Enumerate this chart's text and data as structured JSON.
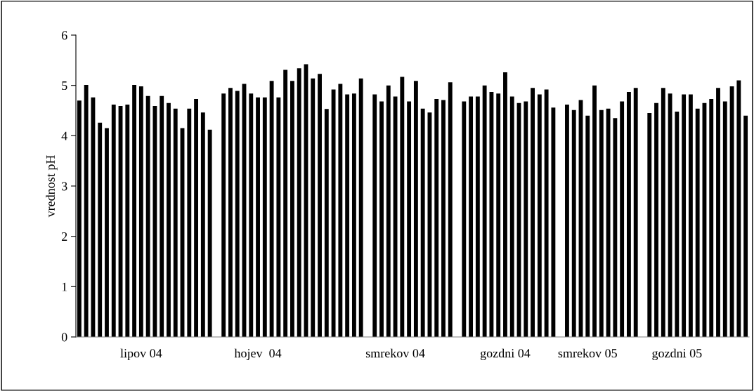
{
  "chart_data": {
    "type": "bar",
    "ylabel": "vrednost pH",
    "categories": [
      null,
      null,
      null,
      null,
      null,
      null,
      null,
      null,
      null,
      "lipov 04",
      null,
      null,
      null,
      null,
      null,
      null,
      null,
      null,
      null,
      null,
      null,
      null,
      null,
      null,
      null,
      null,
      "hojev  04",
      null,
      null,
      null,
      null,
      null,
      null,
      null,
      null,
      null,
      null,
      null,
      null,
      null,
      null,
      null,
      null,
      null,
      null,
      null,
      "smrekov 04",
      null,
      null,
      null,
      null,
      null,
      null,
      null,
      null,
      null,
      null,
      null,
      null,
      null,
      null,
      null,
      "gozdni 04",
      null,
      null,
      null,
      null,
      null,
      null,
      null,
      null,
      null,
      null,
      null,
      "smrekov 05",
      null,
      null,
      null,
      null,
      null,
      null,
      null,
      null,
      null,
      null,
      null,
      null,
      "gozdni 05",
      null,
      null,
      null,
      null,
      null,
      null,
      null,
      null,
      null,
      null
    ],
    "values": [
      4.7,
      5.01,
      4.76,
      4.26,
      4.15,
      4.62,
      4.59,
      4.62,
      5.01,
      4.98,
      4.79,
      4.59,
      4.79,
      4.65,
      4.54,
      4.15,
      4.54,
      4.73,
      4.46,
      4.12,
      null,
      4.84,
      4.95,
      4.89,
      5.03,
      4.84,
      4.76,
      4.76,
      5.09,
      4.76,
      5.31,
      5.09,
      5.34,
      5.42,
      5.14,
      5.23,
      4.53,
      4.92,
      5.03,
      4.82,
      4.84,
      5.14,
      null,
      4.82,
      4.68,
      5.0,
      4.78,
      5.17,
      4.68,
      5.09,
      4.54,
      4.46,
      4.73,
      4.71,
      5.06,
      null,
      4.68,
      4.78,
      4.78,
      5.0,
      4.87,
      4.84,
      5.26,
      4.78,
      4.65,
      4.68,
      4.95,
      4.82,
      4.92,
      4.56,
      null,
      4.62,
      4.51,
      4.71,
      4.4,
      5.0,
      4.51,
      4.54,
      4.35,
      4.68,
      4.87,
      4.95,
      null,
      4.45,
      4.65,
      4.95,
      4.84,
      4.48,
      4.82,
      4.82,
      4.54,
      4.65,
      4.73,
      4.95,
      4.68,
      4.98,
      5.1,
      4.4
    ],
    "color": "#000000",
    "ylim": [
      0,
      6
    ],
    "yticks": [
      0,
      1,
      2,
      3,
      4,
      5,
      6
    ],
    "grid": false,
    "legend": false
  }
}
